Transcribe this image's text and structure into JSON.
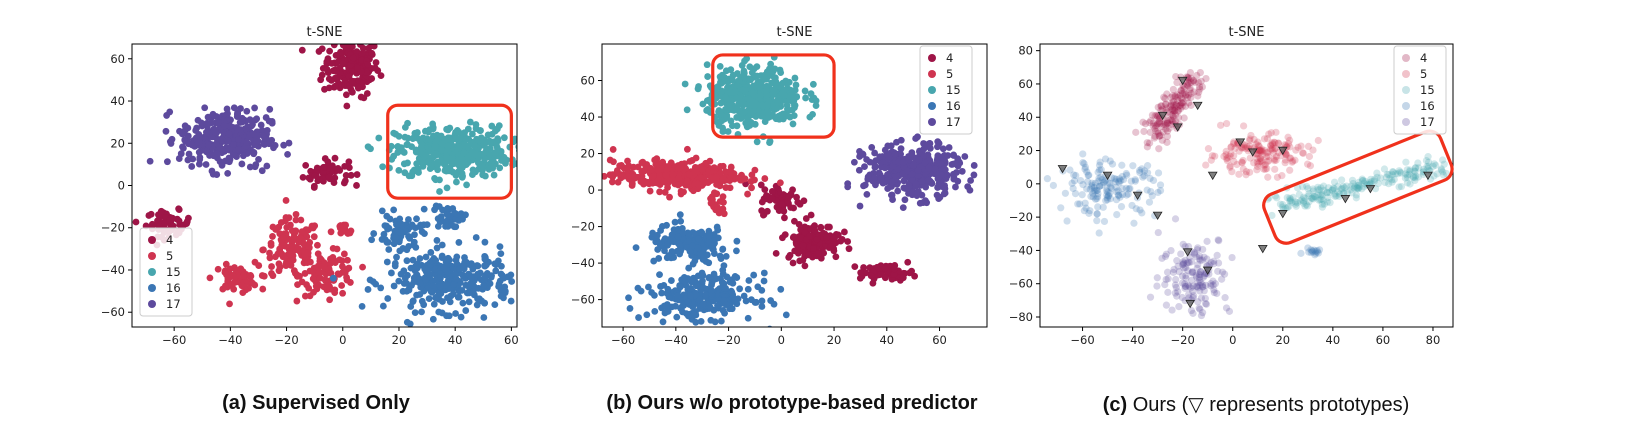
{
  "colors": {
    "4": "#9e1547",
    "5": "#cf3450",
    "15": "#48a6ae",
    "16": "#3b76b4",
    "17": "#5d4a9d",
    "highlight": "#f0311c"
  },
  "captions": {
    "a": {
      "label": "(a)",
      "text": "Supervised Only"
    },
    "b": {
      "label": "(b)",
      "text": "Ours w/o prototype-based predictor"
    },
    "c": {
      "label": "(c)",
      "text": "Ours (▽ represents prototypes)"
    }
  },
  "chart_data": [
    {
      "type": "scatter",
      "title": "t-SNE",
      "xlim": [
        -75,
        62
      ],
      "ylim": [
        -67,
        67
      ],
      "xticks": [
        -60,
        -40,
        -20,
        0,
        20,
        40,
        60
      ],
      "yticks": [
        -60,
        -40,
        -20,
        0,
        20,
        40,
        60
      ],
      "legend": "lower-left",
      "grid": false,
      "legend_entries": [
        "4",
        "5",
        "15",
        "16",
        "17"
      ],
      "clusters": [
        {
          "label": "4",
          "cx": 3,
          "cy": 56,
          "sx": 5,
          "sy": 7,
          "n": 180
        },
        {
          "label": "4",
          "cx": -6,
          "cy": 6,
          "sx": 4,
          "sy": 3,
          "n": 60
        },
        {
          "label": "4",
          "cx": -62,
          "cy": -18,
          "sx": 4,
          "sy": 3,
          "n": 60
        },
        {
          "label": "5",
          "cx": -18,
          "cy": -30,
          "sx": 5,
          "sy": 7,
          "n": 130
        },
        {
          "label": "5",
          "cx": -5,
          "cy": -42,
          "sx": 5,
          "sy": 5,
          "n": 90
        },
        {
          "label": "5",
          "cx": -38,
          "cy": -44,
          "sx": 4,
          "sy": 3,
          "n": 60
        },
        {
          "label": "5",
          "cx": 0,
          "cy": -22,
          "sx": 2,
          "sy": 2,
          "n": 15
        },
        {
          "label": "15",
          "cx": 39,
          "cy": 16,
          "sx": 10,
          "sy": 6,
          "n": 420
        },
        {
          "label": "16",
          "cx": 38,
          "cy": -45,
          "sx": 11,
          "sy": 7,
          "n": 320
        },
        {
          "label": "16",
          "cx": 20,
          "cy": -22,
          "sx": 4,
          "sy": 4,
          "n": 60
        },
        {
          "label": "16",
          "cx": 38,
          "cy": -15,
          "sx": 3,
          "sy": 3,
          "n": 40
        },
        {
          "label": "17",
          "cx": -42,
          "cy": 22,
          "sx": 8,
          "sy": 7,
          "n": 320
        }
      ],
      "highlight_box": {
        "x0": 16,
        "x1": 60,
        "y0": -6,
        "y1": 38
      }
    },
    {
      "type": "scatter",
      "title": "t-SNE",
      "xlim": [
        -68,
        78
      ],
      "ylim": [
        -75,
        80
      ],
      "xticks": [
        -60,
        -40,
        -20,
        0,
        20,
        40,
        60
      ],
      "yticks": [
        -60,
        -40,
        -20,
        0,
        20,
        40,
        60
      ],
      "legend": "top-right",
      "grid": false,
      "legend_entries": [
        "4",
        "5",
        "15",
        "16",
        "17"
      ],
      "clusters": [
        {
          "label": "4",
          "cx": 0,
          "cy": -5,
          "sx": 4,
          "sy": 4,
          "n": 60
        },
        {
          "label": "4",
          "cx": 12,
          "cy": -28,
          "sx": 5,
          "sy": 5,
          "n": 160
        },
        {
          "label": "4",
          "cx": 40,
          "cy": -45,
          "sx": 5,
          "sy": 2,
          "n": 70
        },
        {
          "label": "5",
          "cx": -40,
          "cy": 8,
          "sx": 12,
          "sy": 4,
          "n": 340
        },
        {
          "label": "5",
          "cx": -25,
          "cy": -8,
          "sx": 2,
          "sy": 3,
          "n": 20
        },
        {
          "label": "15",
          "cx": -10,
          "cy": 51,
          "sx": 9,
          "sy": 8,
          "n": 420
        },
        {
          "label": "16",
          "cx": -35,
          "cy": -30,
          "sx": 8,
          "sy": 5,
          "n": 160
        },
        {
          "label": "16",
          "cx": -30,
          "cy": -58,
          "sx": 10,
          "sy": 6,
          "n": 260
        },
        {
          "label": "17",
          "cx": 50,
          "cy": 10,
          "sx": 9,
          "sy": 7,
          "n": 380
        }
      ],
      "highlight_box": {
        "x0": -26,
        "x1": 20,
        "y0": 29,
        "y1": 74
      }
    },
    {
      "type": "scatter",
      "title": "t-SNE",
      "xlim": [
        -77,
        88
      ],
      "ylim": [
        -86,
        84
      ],
      "xticks": [
        -60,
        -40,
        -20,
        0,
        20,
        40,
        60,
        80
      ],
      "yticks": [
        -80,
        -60,
        -40,
        -20,
        0,
        20,
        40,
        60,
        80
      ],
      "legend": "top-right",
      "grid": false,
      "legend_entries": [
        "4",
        "5",
        "15",
        "16",
        "17"
      ],
      "alpha": 0.25,
      "clusters": [
        {
          "label": "4",
          "cx": -24,
          "cy": 45,
          "sx": 6,
          "sy": 14,
          "n": 160
        },
        {
          "label": "5",
          "cx": 10,
          "cy": 18,
          "sx": 10,
          "sy": 6,
          "n": 160
        },
        {
          "label": "16",
          "cx": -50,
          "cy": -3,
          "sx": 10,
          "sy": 8,
          "n": 150
        },
        {
          "label": "16",
          "cx": 32,
          "cy": -40,
          "sx": 2,
          "sy": 1,
          "n": 15
        },
        {
          "label": "17",
          "cx": -15,
          "cy": -55,
          "sx": 7,
          "sy": 12,
          "n": 150
        },
        {
          "label": "15",
          "cx": 50,
          "cy": -1,
          "sx": 20,
          "sy": 6,
          "n": 200
        }
      ],
      "prototypes": [
        {
          "x": -20,
          "y": 62
        },
        {
          "x": -14,
          "y": 47
        },
        {
          "x": -28,
          "y": 41
        },
        {
          "x": -22,
          "y": 34
        },
        {
          "x": 3,
          "y": 25
        },
        {
          "x": 8,
          "y": 19
        },
        {
          "x": 20,
          "y": 20
        },
        {
          "x": -8,
          "y": 5
        },
        {
          "x": -68,
          "y": 9
        },
        {
          "x": -50,
          "y": 5
        },
        {
          "x": -38,
          "y": -7
        },
        {
          "x": -30,
          "y": -19
        },
        {
          "x": -18,
          "y": -41
        },
        {
          "x": -10,
          "y": -52
        },
        {
          "x": -17,
          "y": -72
        },
        {
          "x": 12,
          "y": -39
        },
        {
          "x": 20,
          "y": -18
        },
        {
          "x": 45,
          "y": -9
        },
        {
          "x": 55,
          "y": -3
        },
        {
          "x": 78,
          "y": 5
        }
      ]
    }
  ]
}
